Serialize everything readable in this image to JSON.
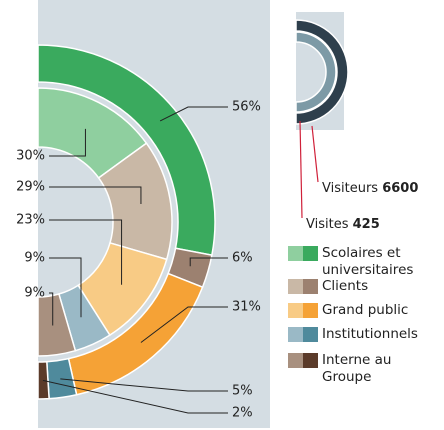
{
  "chart_data": [
    {
      "type": "donut",
      "categories": [
        "Scolaires et universitaires",
        "Clients",
        "Grand public",
        "Institutionnels",
        "Interne au Groupe"
      ],
      "series": [
        {
          "values": [
            56,
            6,
            31,
            5,
            2
          ],
          "value_labels": [
            "56%",
            "6%",
            "31%",
            "5%",
            "2%"
          ],
          "color": [
            "#3aaa5e",
            "#9c8170",
            "#f5a236",
            "#4f8a9c",
            "#5b3b2a"
          ]
        },
        {
          "values": [
            30,
            29,
            23,
            9,
            9
          ],
          "value_labels": [
            "30%",
            "29%",
            "23%",
            "9%",
            "9%"
          ],
          "color": [
            "#8fcf9f",
            "#c9b8a6",
            "#f8cb85",
            "#9ab9c6",
            "#a8907f"
          ]
        }
      ]
    },
    {
      "type": "donut",
      "series": [
        {
          "name": "Visiteurs",
          "values": [
            6600
          ],
          "color": "#2e3f4c"
        },
        {
          "name": "Visites",
          "values": [
            425
          ],
          "color": "#7d9aa6"
        }
      ]
    }
  ]
}
